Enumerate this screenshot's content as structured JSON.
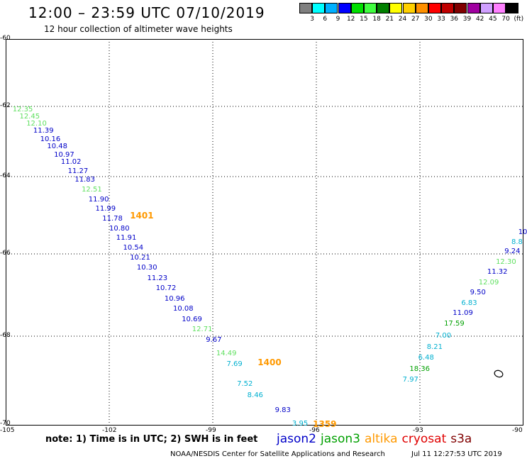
{
  "header": {
    "title": "12:00 – 23:59 UTC 07/10/2019",
    "subtitle": "12 hour collection of altimeter wave heights"
  },
  "colorbar": {
    "colors": [
      "#808080",
      "#00ffff",
      "#00b0ff",
      "#0000ff",
      "#00e000",
      "#40ff40",
      "#008000",
      "#ffff00",
      "#ffd000",
      "#ff9000",
      "#ff0000",
      "#c00000",
      "#800000",
      "#a000a0",
      "#d0a0ff",
      "#ff80ff",
      "#000000"
    ],
    "labels": [
      "3",
      "6",
      "9",
      "12",
      "15",
      "18",
      "21",
      "24",
      "27",
      "30",
      "33",
      "36",
      "39",
      "42",
      "45",
      "70",
      "(ft)"
    ]
  },
  "axes": {
    "lat_labels": [
      "-60",
      "-62",
      "-64",
      "-66",
      "-68",
      "-70"
    ],
    "lon_labels": [
      "-105",
      "-102",
      "-99",
      "-96",
      "-93",
      "-90"
    ]
  },
  "series_colors": {
    "jason2": "#0000c8",
    "jason3": "#00a000",
    "altika": "#ff9900",
    "cryosat": "#e00000",
    "s3a": "#800000",
    "lightgreen": "#60e060",
    "cyan": "#00b0d0"
  },
  "swh": [
    {
      "t": "12.35",
      "lon": -104.8,
      "lat": -62.1,
      "c": "lightgreen"
    },
    {
      "t": "12.45",
      "lon": -104.6,
      "lat": -62.3,
      "c": "lightgreen"
    },
    {
      "t": "12.10",
      "lon": -104.4,
      "lat": -62.5,
      "c": "lightgreen"
    },
    {
      "t": "11.39",
      "lon": -104.2,
      "lat": -62.7,
      "c": "jason2"
    },
    {
      "t": "10.16",
      "lon": -104.0,
      "lat": -62.95,
      "c": "jason2"
    },
    {
      "t": "10.48",
      "lon": -103.8,
      "lat": -63.15,
      "c": "jason2"
    },
    {
      "t": "10.97",
      "lon": -103.6,
      "lat": -63.4,
      "c": "jason2"
    },
    {
      "t": "11.02",
      "lon": -103.4,
      "lat": -63.6,
      "c": "jason2"
    },
    {
      "t": "11.27",
      "lon": -103.2,
      "lat": -63.85,
      "c": "jason2"
    },
    {
      "t": "11.83",
      "lon": -103.0,
      "lat": -64.1,
      "c": "jason2"
    },
    {
      "t": "12.51",
      "lon": -102.8,
      "lat": -64.35,
      "c": "lightgreen"
    },
    {
      "t": "11.90",
      "lon": -102.6,
      "lat": -64.6,
      "c": "jason2"
    },
    {
      "t": "11.99",
      "lon": -102.4,
      "lat": -64.85,
      "c": "jason2"
    },
    {
      "t": "11.78",
      "lon": -102.2,
      "lat": -65.1,
      "c": "jason2"
    },
    {
      "t": "10.80",
      "lon": -102.0,
      "lat": -65.35,
      "c": "jason2"
    },
    {
      "t": "11.91",
      "lon": -101.8,
      "lat": -65.6,
      "c": "jason2"
    },
    {
      "t": "10.54",
      "lon": -101.6,
      "lat": -65.85,
      "c": "jason2"
    },
    {
      "t": "10.21",
      "lon": -101.4,
      "lat": -66.1,
      "c": "jason2"
    },
    {
      "t": "10.30",
      "lon": -101.2,
      "lat": -66.35,
      "c": "jason2"
    },
    {
      "t": "11.23",
      "lon": -100.9,
      "lat": -66.6,
      "c": "jason2"
    },
    {
      "t": "10.72",
      "lon": -100.65,
      "lat": -66.85,
      "c": "jason2"
    },
    {
      "t": "10.96",
      "lon": -100.4,
      "lat": -67.1,
      "c": "jason2"
    },
    {
      "t": "10.08",
      "lon": -100.15,
      "lat": -67.35,
      "c": "jason2"
    },
    {
      "t": "10.69",
      "lon": -99.9,
      "lat": -67.6,
      "c": "jason2"
    },
    {
      "t": "12.71",
      "lon": -99.6,
      "lat": -67.85,
      "c": "lightgreen"
    },
    {
      "t": "9.67",
      "lon": -99.2,
      "lat": -68.1,
      "c": "jason2"
    },
    {
      "t": "14.49",
      "lon": -98.9,
      "lat": -68.4,
      "c": "lightgreen"
    },
    {
      "t": "7.69",
      "lon": -98.6,
      "lat": -68.65,
      "c": "cyan"
    },
    {
      "t": "7.52",
      "lon": -98.3,
      "lat": -69.1,
      "c": "cyan"
    },
    {
      "t": "8.46",
      "lon": -98.0,
      "lat": -69.35,
      "c": "cyan"
    },
    {
      "t": "9.83",
      "lon": -97.2,
      "lat": -69.7,
      "c": "jason2"
    },
    {
      "t": "3.95",
      "lon": -96.7,
      "lat": -70.1,
      "c": "cyan"
    },
    {
      "t": "7.97",
      "lon": -93.5,
      "lat": -69.0,
      "c": "cyan"
    },
    {
      "t": "18.36",
      "lon": -93.3,
      "lat": -68.75,
      "c": "jason3"
    },
    {
      "t": "6.48",
      "lon": -93.05,
      "lat": -68.5,
      "c": "cyan"
    },
    {
      "t": "8.21",
      "lon": -92.8,
      "lat": -68.25,
      "c": "cyan"
    },
    {
      "t": "7.00",
      "lon": -92.55,
      "lat": -68.0,
      "c": "cyan"
    },
    {
      "t": "17.59",
      "lon": -92.3,
      "lat": -67.7,
      "c": "jason3"
    },
    {
      "t": "11.09",
      "lon": -92.05,
      "lat": -67.45,
      "c": "jason2"
    },
    {
      "t": "6.83",
      "lon": -91.8,
      "lat": -67.2,
      "c": "cyan"
    },
    {
      "t": "9.50",
      "lon": -91.55,
      "lat": -66.95,
      "c": "jason2"
    },
    {
      "t": "12.09",
      "lon": -91.3,
      "lat": -66.7,
      "c": "lightgreen"
    },
    {
      "t": "11.32",
      "lon": -91.05,
      "lat": -66.45,
      "c": "jason2"
    },
    {
      "t": "12.30",
      "lon": -90.8,
      "lat": -66.2,
      "c": "lightgreen"
    },
    {
      "t": "9.24",
      "lon": -90.55,
      "lat": -65.95,
      "c": "jason2"
    },
    {
      "t": "8.8",
      "lon": -90.35,
      "lat": -65.7,
      "c": "cyan"
    },
    {
      "t": "10",
      "lon": -90.15,
      "lat": -65.45,
      "c": "jason2"
    }
  ],
  "times": [
    {
      "t": "1401",
      "lon": -101.4,
      "lat": -65.0
    },
    {
      "t": "1400",
      "lon": -97.7,
      "lat": -68.6
    },
    {
      "t": "1359",
      "lon": -96.1,
      "lat": -70.1
    }
  ],
  "footer": {
    "note": "note: 1) Time is in UTC; 2) SWH is in feet",
    "legend": [
      {
        "name": "jason2",
        "color": "#0000c8"
      },
      {
        "name": "jason3",
        "color": "#00a000"
      },
      {
        "name": "altika",
        "color": "#ff9900"
      },
      {
        "name": "cryosat",
        "color": "#e00000"
      },
      {
        "name": "s3a",
        "color": "#800000"
      }
    ],
    "credit": "NOAA/NESDIS Center for Satellite Applications and Research",
    "stamp": "Jul 11 12:27:53 UTC 2019"
  }
}
